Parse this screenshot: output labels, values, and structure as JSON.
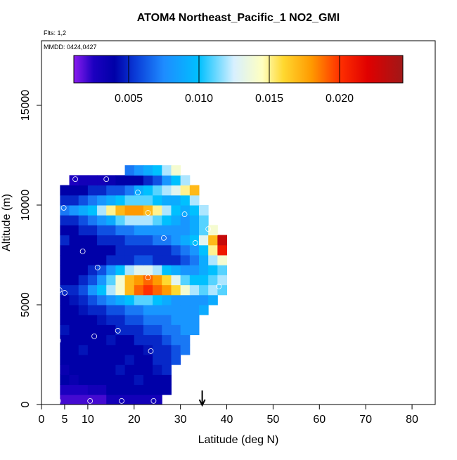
{
  "chart_data": {
    "type": "heatmap",
    "title": "ATOM4 Northeast_Pacific_1 NO2_GMI",
    "subtitle": "Flts: 1,2",
    "annotation": "MMDD: 0424,0427",
    "x_label": "Latitude (deg N)",
    "y_label": "Altitude (m)",
    "xlim": [
      0,
      85
    ],
    "ylim": [
      0,
      18240
    ],
    "xticks": [
      0,
      5,
      10,
      20,
      30,
      40,
      50,
      60,
      70,
      80
    ],
    "yticks": [
      0,
      5000,
      10000,
      15000
    ],
    "x_bins": [
      4,
      6,
      8,
      10,
      12,
      14,
      16,
      18,
      20,
      22,
      24,
      26,
      28,
      30,
      32,
      34,
      36,
      38,
      40
    ],
    "y_bins": [
      0,
      500,
      1000,
      1500,
      2000,
      2500,
      3000,
      3500,
      4000,
      4500,
      5000,
      5500,
      6000,
      6500,
      7000,
      7500,
      8000,
      8500,
      9000,
      9500,
      10000,
      10500,
      11000,
      11500,
      12000
    ],
    "z": [
      [
        0.002,
        0.002,
        0.002,
        0.002,
        0.002,
        0.003,
        0.003,
        0.003,
        0.003,
        0.003,
        0.003,
        null,
        null,
        null,
        null,
        null,
        null,
        null
      ],
      [
        0.0025,
        0.0025,
        0.0025,
        0.003,
        0.003,
        0.004,
        0.004,
        0.004,
        0.004,
        0.004,
        0.004,
        0.004,
        null,
        null,
        null,
        null,
        null,
        null
      ],
      [
        0.004,
        0.0035,
        0.004,
        0.004,
        0.004,
        0.004,
        0.004,
        0.004,
        0.0045,
        0.004,
        0.004,
        0.004,
        null,
        null,
        null,
        null,
        null,
        null
      ],
      [
        0.0035,
        0.004,
        0.004,
        0.004,
        0.004,
        0.004,
        0.0045,
        0.004,
        0.004,
        0.004,
        0.0045,
        0.005,
        null,
        null,
        null,
        null,
        null,
        null
      ],
      [
        0.004,
        0.004,
        0.004,
        0.004,
        0.004,
        0.004,
        0.004,
        0.0045,
        0.004,
        0.004,
        0.005,
        0.005,
        0.006,
        null,
        null,
        null,
        null,
        null
      ],
      [
        0.004,
        0.004,
        0.0045,
        0.004,
        0.004,
        0.004,
        0.004,
        0.004,
        0.004,
        0.0045,
        0.005,
        0.005,
        0.006,
        0.007,
        null,
        null,
        null,
        null
      ],
      [
        0.004,
        0.004,
        0.004,
        0.004,
        0.004,
        0.0045,
        0.004,
        0.004,
        0.005,
        0.005,
        0.005,
        0.006,
        0.007,
        0.007,
        null,
        null,
        null,
        null
      ],
      [
        0.0045,
        0.004,
        0.004,
        0.004,
        0.004,
        0.004,
        0.005,
        0.005,
        0.005,
        0.006,
        0.006,
        0.007,
        0.007,
        0.008,
        0.008,
        null,
        null,
        null
      ],
      [
        0.004,
        0.004,
        0.004,
        0.004,
        0.0045,
        0.005,
        0.005,
        0.006,
        0.006,
        0.007,
        0.007,
        0.007,
        0.008,
        0.008,
        0.008,
        null,
        null,
        null
      ],
      [
        0.004,
        0.004,
        0.0045,
        0.005,
        0.005,
        0.006,
        0.006,
        0.007,
        0.007,
        0.008,
        0.008,
        0.008,
        0.008,
        0.008,
        0.008,
        0.009,
        null,
        null
      ],
      [
        0.004,
        0.0045,
        0.005,
        0.006,
        0.007,
        0.008,
        0.009,
        0.01,
        0.011,
        0.011,
        0.01,
        0.009,
        0.008,
        0.008,
        0.008,
        0.008,
        0.009,
        null
      ],
      [
        0.005,
        0.005,
        0.006,
        0.008,
        0.01,
        0.012,
        0.014,
        0.017,
        0.019,
        0.02,
        0.019,
        0.018,
        0.016,
        0.014,
        0.012,
        0.011,
        0.012,
        0.011
      ],
      [
        0.004,
        0.004,
        0.005,
        0.006,
        0.008,
        0.011,
        0.014,
        0.017,
        0.018,
        0.019,
        0.018,
        0.016,
        0.013,
        0.011,
        0.01,
        0.01,
        0.011,
        0.012
      ],
      [
        0.004,
        0.004,
        0.004,
        0.005,
        0.006,
        0.008,
        0.01,
        0.012,
        0.013,
        0.013,
        0.012,
        0.01,
        0.009,
        0.008,
        0.008,
        0.009,
        0.01,
        0.011
      ],
      [
        0.004,
        0.004,
        0.004,
        0.004,
        0.004,
        0.005,
        0.005,
        0.005,
        0.006,
        0.006,
        0.005,
        0.005,
        0.005,
        0.006,
        0.007,
        0.009,
        0.012,
        0.014
      ],
      [
        0.004,
        0.004,
        0.004,
        0.004,
        0.004,
        0.004,
        0.005,
        0.005,
        0.005,
        0.005,
        0.005,
        0.005,
        0.006,
        0.007,
        0.008,
        0.01,
        0.015,
        0.021
      ],
      [
        0.005,
        0.004,
        0.004,
        0.004,
        0.005,
        0.005,
        0.005,
        0.006,
        0.006,
        0.006,
        0.007,
        0.007,
        0.008,
        0.009,
        0.01,
        0.013,
        0.017,
        0.023
      ],
      [
        0.004,
        0.004,
        0.005,
        0.005,
        0.006,
        0.006,
        0.007,
        0.007,
        0.008,
        0.008,
        0.008,
        0.008,
        0.008,
        0.008,
        0.009,
        0.011,
        0.014,
        null
      ],
      [
        0.005,
        0.005,
        0.006,
        0.007,
        0.008,
        0.009,
        0.011,
        0.012,
        0.012,
        0.012,
        0.011,
        0.01,
        0.009,
        0.008,
        0.009,
        0.011,
        null,
        null
      ],
      [
        0.007,
        0.008,
        0.009,
        0.01,
        0.012,
        0.015,
        0.017,
        0.018,
        0.018,
        0.017,
        0.015,
        0.012,
        0.01,
        0.009,
        0.01,
        0.012,
        null,
        null
      ],
      [
        0.005,
        0.005,
        0.006,
        0.007,
        0.008,
        0.009,
        0.01,
        0.011,
        0.011,
        0.011,
        0.01,
        0.009,
        0.009,
        0.01,
        0.012,
        null,
        null,
        null
      ],
      [
        0.004,
        0.004,
        0.004,
        0.005,
        0.005,
        0.006,
        0.006,
        0.007,
        0.009,
        0.01,
        0.011,
        0.012,
        0.013,
        0.015,
        0.017,
        null,
        null,
        null
      ],
      [
        null,
        0.0025,
        0.003,
        0.003,
        0.003,
        0.0035,
        0.004,
        0.004,
        0.004,
        0.005,
        0.006,
        0.008,
        0.01,
        0.012,
        null,
        null,
        null,
        null
      ],
      [
        null,
        null,
        null,
        null,
        null,
        null,
        null,
        0.007,
        0.008,
        0.009,
        0.01,
        0.012,
        0.014,
        null,
        null,
        null,
        null,
        null
      ]
    ],
    "colorscale": [
      [
        0.0011,
        "#8b1cf0"
      ],
      [
        0.0025,
        "#1c00c0"
      ],
      [
        0.004,
        "#0000a8"
      ],
      [
        0.0055,
        "#0a3cd8"
      ],
      [
        0.0075,
        "#1e8cff"
      ],
      [
        0.01,
        "#00c0ff"
      ],
      [
        0.0125,
        "#d8f0ff"
      ],
      [
        0.0145,
        "#ffffc0"
      ],
      [
        0.016,
        "#ffd830"
      ],
      [
        0.018,
        "#ff9a00"
      ],
      [
        0.02,
        "#ff3000"
      ],
      [
        0.022,
        "#e00000"
      ],
      [
        0.0245,
        "#a01818"
      ]
    ],
    "colorbar_lim": [
      0.0011,
      0.0245
    ],
    "colorbar_ticks": [
      0.005,
      {
        "value": 0.01,
        "label": "0.010"
      },
      0.015,
      {
        "value": 0.02,
        "label": "0.020"
      }
    ],
    "points": {
      "x": [
        7.3,
        14,
        20.8,
        4.8,
        23,
        30.9,
        36,
        26.4,
        33.2,
        8.9,
        12.1,
        23,
        38.3,
        3.9,
        5,
        16.5,
        11.4,
        3.6,
        23.6,
        3.6,
        10.5,
        17.3,
        24.2
      ],
      "y": [
        11300,
        11300,
        10630,
        9860,
        9610,
        9540,
        8800,
        8350,
        8100,
        7680,
        6870,
        6370,
        5920,
        5740,
        5600,
        3700,
        3420,
        3200,
        2680,
        180,
        180,
        180,
        180
      ]
    },
    "marker_x": 34.7
  }
}
